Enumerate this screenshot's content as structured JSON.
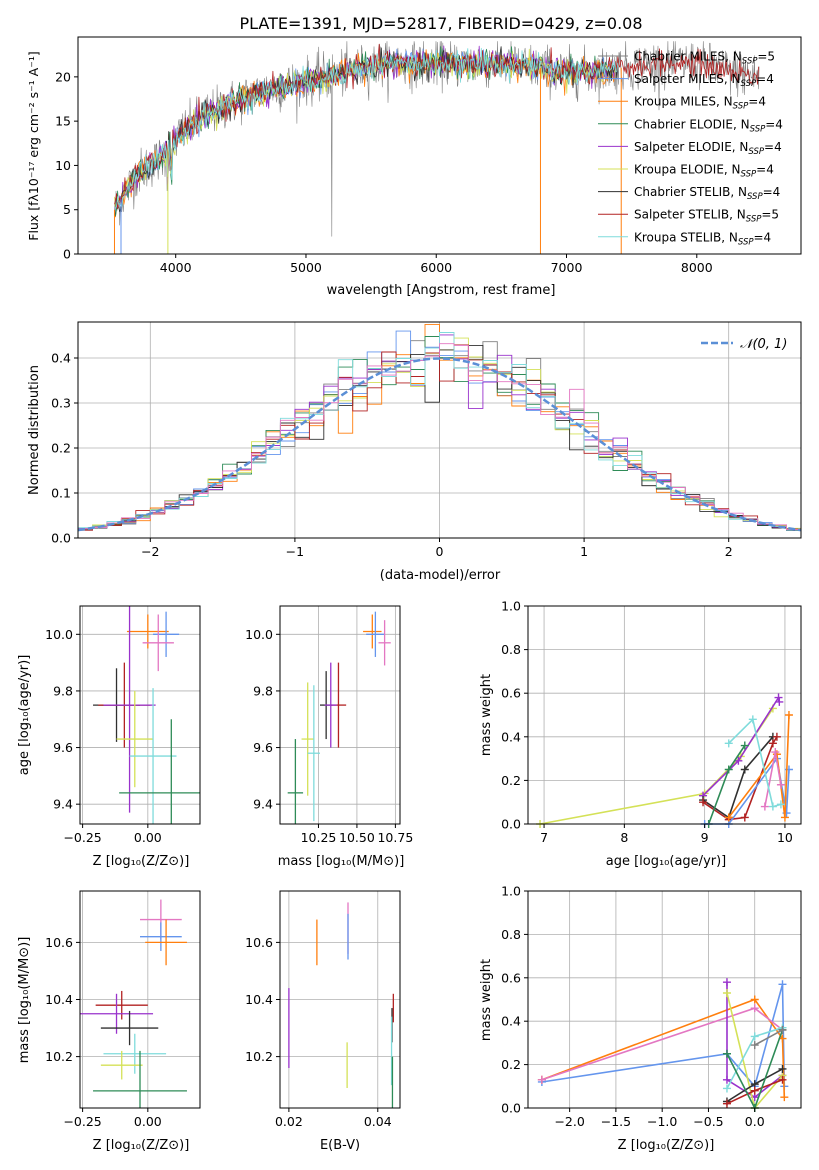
{
  "chart_data": [
    {
      "id": "spectrum",
      "type": "line",
      "title": "PLATE=1391, MJD=52817, FIBERID=0429, z=0.08",
      "xlabel": "wavelength [Angstrom, rest frame]",
      "ylabel": "Flux [fλ10⁻¹⁷ erg cm⁻² s⁻¹ A⁻¹]",
      "xlim": [
        3250,
        8800
      ],
      "ylim": [
        0,
        24.5
      ],
      "xticks": [
        4000,
        5000,
        6000,
        7000,
        8000
      ],
      "yticks": [
        0,
        5,
        10,
        15,
        20
      ],
      "grid": false,
      "legend_position": "top-right",
      "series": [
        {
          "name": "Chabrier MILES, N",
          "sub": "SSP",
          "suffix": "=5",
          "color": "#808080"
        },
        {
          "name": "Salpeter MILES, N",
          "sub": "SSP",
          "suffix": "=4",
          "color": "#6495ed"
        },
        {
          "name": "Kroupa MILES, N",
          "sub": "SSP",
          "suffix": "=4",
          "color": "#ff7f0e"
        },
        {
          "name": "Chabrier ELODIE, N",
          "sub": "SSP",
          "suffix": "=4",
          "color": "#2e8b57"
        },
        {
          "name": "Salpeter ELODIE, N",
          "sub": "SSP",
          "suffix": "=4",
          "color": "#9932cc"
        },
        {
          "name": "Kroupa ELODIE, N",
          "sub": "SSP",
          "suffix": "=4",
          "color": "#d4e157"
        },
        {
          "name": "Chabrier STELIB, N",
          "sub": "SSP",
          "suffix": "=4",
          "color": "#303030"
        },
        {
          "name": "Salpeter STELIB, N",
          "sub": "SSP",
          "suffix": "=5",
          "color": "#b22222"
        },
        {
          "name": "Kroupa STELIB, N",
          "sub": "SSP",
          "suffix": "=4",
          "color": "#7fdbdb"
        }
      ],
      "continuum": {
        "x": [
          3530,
          3700,
          3900,
          4000,
          4200,
          4500,
          4700,
          5000,
          5300,
          5600,
          5900,
          6200,
          6500,
          6800,
          7000,
          7200,
          7400,
          7700,
          8000,
          8300,
          8500
        ],
        "y": [
          5,
          9,
          11,
          13,
          15.5,
          17.5,
          18.5,
          19.5,
          20.5,
          21.5,
          21.5,
          21.5,
          21.5,
          21,
          20.5,
          20.5,
          21,
          21.5,
          21.5,
          20.5,
          20
        ]
      }
    },
    {
      "id": "residuals",
      "type": "histogram",
      "xlabel": "(data-model)/error",
      "ylabel": "Normed distribution",
      "xlim": [
        -2.5,
        2.5
      ],
      "ylim": [
        0,
        0.48
      ],
      "xticks": [
        -2,
        -1,
        0,
        1,
        2
      ],
      "yticks": [
        0.0,
        0.1,
        0.2,
        0.3,
        0.4
      ],
      "grid": true,
      "legend_position": "top-right",
      "reference_label": "𝒩(0, 1)",
      "reference_color": "#5b8fd6",
      "bin_width": 0.1
    },
    {
      "id": "age_vs_Z",
      "type": "scatter",
      "xlabel": "Z [log₁₀(Z/Z⊙)]",
      "ylabel": "age  [log₁₀(age/yr)]",
      "xlim": [
        -0.26,
        0.2
      ],
      "ylim": [
        9.33,
        10.1
      ],
      "xticks": [
        -0.25,
        0.0
      ],
      "xticklabels": [
        "−0.25",
        "0.00"
      ],
      "yticks": [
        9.4,
        9.6,
        9.8,
        10.0
      ],
      "grid": true,
      "points": [
        {
          "x": 0.0,
          "y": 10.01,
          "xerr": 0.08,
          "yerr": 0.06,
          "color": "#ff7f0e"
        },
        {
          "x": 0.07,
          "y": 10.0,
          "xerr": 0.05,
          "yerr": 0.08,
          "color": "#6495ed"
        },
        {
          "x": 0.04,
          "y": 9.97,
          "xerr": 0.06,
          "yerr": 0.1,
          "color": "#e377c2"
        },
        {
          "x": -0.12,
          "y": 9.75,
          "xerr": 0.09,
          "yerr": 0.13,
          "color": "#303030"
        },
        {
          "x": -0.09,
          "y": 9.75,
          "xerr": 0.1,
          "yerr": 0.15,
          "color": "#b22222"
        },
        {
          "x": -0.07,
          "y": 9.75,
          "xerr": 0.1,
          "yerr": 0.38,
          "color": "#9932cc"
        },
        {
          "x": -0.05,
          "y": 9.63,
          "xerr": 0.07,
          "yerr": 0.17,
          "color": "#d4e157"
        },
        {
          "x": 0.02,
          "y": 9.57,
          "xerr": 0.09,
          "yerr": 0.24,
          "color": "#7fdbdb"
        },
        {
          "x": 0.09,
          "y": 9.44,
          "xerr": 0.2,
          "yerr": 0.26,
          "color": "#2e8b57"
        }
      ]
    },
    {
      "id": "age_vs_mass",
      "type": "scatter",
      "xlabel": "mass [log₁₀(M/M⊙)]",
      "xlim": [
        10.0,
        10.78
      ],
      "ylim": [
        9.33,
        10.1
      ],
      "xticks": [
        10.25,
        10.5,
        10.75
      ],
      "xticklabels": [
        "10.25",
        "10.50",
        "10.75"
      ],
      "yticks": [
        9.4,
        9.6,
        9.8,
        10.0
      ],
      "grid": true,
      "points": [
        {
          "x": 10.6,
          "y": 10.01,
          "xerr": 0.06,
          "yerr": 0.06,
          "color": "#ff7f0e"
        },
        {
          "x": 10.62,
          "y": 10.0,
          "xerr": 0.06,
          "yerr": 0.08,
          "color": "#6495ed"
        },
        {
          "x": 10.68,
          "y": 9.97,
          "xerr": 0.04,
          "yerr": 0.08,
          "color": "#e377c2"
        },
        {
          "x": 10.3,
          "y": 9.75,
          "xerr": 0.04,
          "yerr": 0.12,
          "color": "#303030"
        },
        {
          "x": 10.38,
          "y": 9.75,
          "xerr": 0.05,
          "yerr": 0.15,
          "color": "#b22222"
        },
        {
          "x": 10.33,
          "y": 9.75,
          "xerr": 0.04,
          "yerr": 0.15,
          "color": "#9932cc"
        },
        {
          "x": 10.18,
          "y": 9.63,
          "xerr": 0.04,
          "yerr": 0.2,
          "color": "#d4e157"
        },
        {
          "x": 10.22,
          "y": 9.58,
          "xerr": 0.04,
          "yerr": 0.24,
          "color": "#7fdbdb"
        },
        {
          "x": 10.1,
          "y": 9.44,
          "xerr": 0.05,
          "yerr": 0.19,
          "color": "#2e8b57"
        }
      ]
    },
    {
      "id": "weight_vs_age",
      "type": "line",
      "xlabel": "age  [log₁₀(age/yr)]",
      "ylabel": "mass weight",
      "xlim": [
        6.8,
        10.2
      ],
      "ylim": [
        0,
        1
      ],
      "xticks": [
        7,
        8,
        9,
        10
      ],
      "yticks": [
        0.0,
        0.2,
        0.4,
        0.6,
        0.8,
        1.0
      ],
      "grid": true,
      "series": [
        {
          "color": "#d4e157",
          "x": [
            6.95,
            9.0,
            9.45,
            9.85
          ],
          "y": [
            0.0,
            0.14,
            0.31,
            0.53
          ]
        },
        {
          "color": "#9932cc",
          "x": [
            8.98,
            9.42,
            9.92,
            9.93
          ],
          "y": [
            0.13,
            0.29,
            0.58,
            0.56
          ]
        },
        {
          "color": "#303030",
          "x": [
            8.98,
            9.3,
            9.5,
            9.85
          ],
          "y": [
            0.11,
            0.03,
            0.25,
            0.4
          ]
        },
        {
          "color": "#b22222",
          "x": [
            8.98,
            9.3,
            9.5,
            9.85,
            9.9
          ],
          "y": [
            0.1,
            0.02,
            0.03,
            0.37,
            0.4
          ]
        },
        {
          "color": "#2e8b57",
          "x": [
            9.05,
            9.3,
            9.5
          ],
          "y": [
            0.0,
            0.25,
            0.36
          ]
        },
        {
          "color": "#6495ed",
          "x": [
            9.0,
            9.3,
            9.9,
            10.02,
            10.05
          ],
          "y": [
            0.0,
            0.0,
            0.3,
            0.05,
            0.25
          ]
        },
        {
          "color": "#ff7f0e",
          "x": [
            9.3,
            9.9,
            10.0,
            10.05
          ],
          "y": [
            0.03,
            0.32,
            0.03,
            0.5
          ]
        },
        {
          "color": "#e377c2",
          "x": [
            9.75,
            9.88,
            9.95
          ],
          "y": [
            0.08,
            0.33,
            0.18
          ]
        },
        {
          "color": "#7fdbdb",
          "x": [
            9.3,
            9.6,
            9.85,
            9.95
          ],
          "y": [
            0.37,
            0.48,
            0.08,
            0.09
          ]
        }
      ]
    },
    {
      "id": "mass_vs_Z",
      "type": "scatter",
      "xlabel": "Z [log₁₀(Z/Z⊙)]",
      "ylabel": "mass [log₁₀(M/M⊙)]",
      "xlim": [
        -0.26,
        0.2
      ],
      "ylim": [
        10.02,
        10.78
      ],
      "xticks": [
        -0.25,
        0.0
      ],
      "xticklabels": [
        "−0.25",
        "0.00"
      ],
      "yticks": [
        10.2,
        10.4,
        10.6
      ],
      "grid": true,
      "points": [
        {
          "x": 0.05,
          "y": 10.68,
          "xerr": 0.08,
          "yerr": 0.07,
          "color": "#e377c2"
        },
        {
          "x": 0.05,
          "y": 10.62,
          "xerr": 0.08,
          "yerr": 0.05,
          "color": "#6495ed"
        },
        {
          "x": 0.07,
          "y": 10.6,
          "xerr": 0.08,
          "yerr": 0.08,
          "color": "#ff7f0e"
        },
        {
          "x": -0.1,
          "y": 10.38,
          "xerr": 0.1,
          "yerr": 0.05,
          "color": "#b22222"
        },
        {
          "x": -0.12,
          "y": 10.35,
          "xerr": 0.14,
          "yerr": 0.07,
          "color": "#9932cc"
        },
        {
          "x": -0.07,
          "y": 10.3,
          "xerr": 0.11,
          "yerr": 0.06,
          "color": "#303030"
        },
        {
          "x": -0.05,
          "y": 10.21,
          "xerr": 0.12,
          "yerr": 0.07,
          "color": "#7fdbdb"
        },
        {
          "x": -0.1,
          "y": 10.17,
          "xerr": 0.08,
          "yerr": 0.05,
          "color": "#d4e157"
        },
        {
          "x": -0.03,
          "y": 10.08,
          "xerr": 0.18,
          "yerr": 0.14,
          "color": "#2e8b57"
        }
      ]
    },
    {
      "id": "mass_vs_EBV",
      "type": "scatter",
      "xlabel": "E(B-V)",
      "xlim": [
        0.018,
        0.045
      ],
      "ylim": [
        10.02,
        10.78
      ],
      "xticks": [
        0.02,
        0.04
      ],
      "xticklabels": [
        "0.02",
        "0.04"
      ],
      "yticks": [
        10.2,
        10.4,
        10.6
      ],
      "grid": true,
      "points": [
        {
          "x": 0.02,
          "y": 10.3,
          "yerr": 0.14,
          "color": "#9932cc"
        },
        {
          "x": 0.0263,
          "y": 10.6,
          "yerr": 0.08,
          "color": "#ff7f0e"
        },
        {
          "x": 0.0333,
          "y": 10.65,
          "yerr": 0.09,
          "color": "#e377c2"
        },
        {
          "x": 0.0333,
          "y": 10.62,
          "yerr": 0.08,
          "color": "#6495ed"
        },
        {
          "x": 0.0331,
          "y": 10.17,
          "yerr": 0.08,
          "color": "#d4e157"
        },
        {
          "x": 0.0435,
          "y": 10.37,
          "yerr": 0.05,
          "color": "#b22222"
        },
        {
          "x": 0.0432,
          "y": 10.31,
          "yerr": 0.06,
          "color": "#303030"
        },
        {
          "x": 0.0431,
          "y": 10.22,
          "yerr": 0.12,
          "color": "#7fdbdb"
        },
        {
          "x": 0.0433,
          "y": 10.1,
          "yerr": 0.1,
          "color": "#2e8b57"
        }
      ]
    },
    {
      "id": "weight_vs_Z",
      "type": "line",
      "xlabel": "Z [log₁₀(Z/Z⊙)]",
      "ylabel": "mass weight",
      "xlim": [
        -2.45,
        0.5
      ],
      "ylim": [
        0,
        1
      ],
      "xticks": [
        -2.0,
        -1.5,
        -1.0,
        -0.5,
        0.0
      ],
      "xticklabels": [
        "−2.0",
        "−1.5",
        "−1.0",
        "−0.5",
        "0.0"
      ],
      "yticks": [
        0.0,
        0.2,
        0.4,
        0.6,
        0.8,
        1.0
      ],
      "grid": true,
      "series": [
        {
          "color": "#6495ed",
          "x": [
            -2.3,
            -0.3,
            0.0,
            0.3,
            0.32
          ],
          "y": [
            0.12,
            0.25,
            0.1,
            0.57,
            0.1
          ]
        },
        {
          "color": "#ff7f0e",
          "x": [
            -2.3,
            0.0,
            0.3,
            0.32
          ],
          "y": [
            0.13,
            0.5,
            0.32,
            0.05
          ]
        },
        {
          "color": "#e377c2",
          "x": [
            -2.3,
            0.0,
            0.3
          ],
          "y": [
            0.13,
            0.46,
            0.36
          ]
        },
        {
          "color": "#9932cc",
          "x": [
            -0.3,
            -0.3,
            0.0,
            0.3
          ],
          "y": [
            0.58,
            0.13,
            0.05,
            0.15
          ]
        },
        {
          "color": "#d4e157",
          "x": [
            -0.3,
            0.0,
            0.3
          ],
          "y": [
            0.53,
            0.0,
            0.15
          ]
        },
        {
          "color": "#7fdbdb",
          "x": [
            -0.3,
            0.0,
            0.3
          ],
          "y": [
            0.09,
            0.33,
            0.37
          ]
        },
        {
          "color": "#303030",
          "x": [
            -0.3,
            0.0,
            0.3
          ],
          "y": [
            0.03,
            0.11,
            0.18
          ]
        },
        {
          "color": "#b22222",
          "x": [
            -0.3,
            0.0,
            0.3
          ],
          "y": [
            0.02,
            0.08,
            0.13
          ]
        },
        {
          "color": "#2e8b57",
          "x": [
            -0.3,
            0.0,
            0.3
          ],
          "y": [
            0.25,
            0.0,
            0.36
          ]
        },
        {
          "color": "#808080",
          "x": [
            0.0,
            0.3
          ],
          "y": [
            0.29,
            0.36
          ]
        }
      ]
    }
  ]
}
